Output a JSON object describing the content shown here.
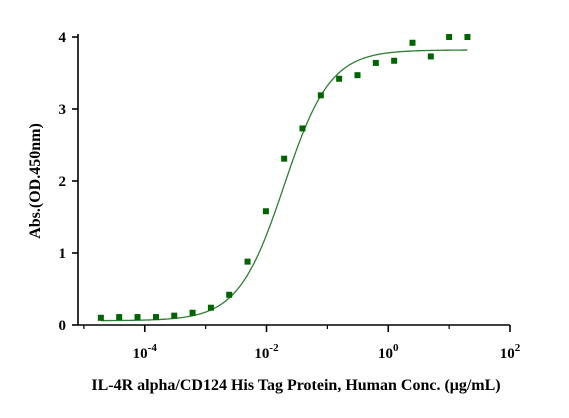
{
  "chart_data": {
    "type": "scatter",
    "title": "",
    "xlabel": "IL-4R alpha/CD124 His Tag Protein, Human Conc. (μg/mL)",
    "ylabel": "Abs.(OD.450nm)",
    "x_scale": "log10",
    "xlim": [
      8e-06,
      100
    ],
    "ylim": [
      0,
      4.2
    ],
    "x_ticks": [
      {
        "value": 0.0001,
        "base": "10",
        "exp": "-4"
      },
      {
        "value": 0.01,
        "base": "10",
        "exp": "-2"
      },
      {
        "value": 1,
        "base": "10",
        "exp": "0"
      },
      {
        "value": 100,
        "base": "10",
        "exp": "2"
      }
    ],
    "y_ticks": [
      "0",
      "1",
      "2",
      "3",
      "4"
    ],
    "grid": false,
    "legend": "none",
    "colors": {
      "points": "#006400",
      "curve": "#2e7d32",
      "axis": "#000000"
    },
    "series": [
      {
        "points": [
          {
            "x": 1.9e-05,
            "y": 0.1
          },
          {
            "x": 3.8e-05,
            "y": 0.11
          },
          {
            "x": 7.6e-05,
            "y": 0.11
          },
          {
            "x": 0.000153,
            "y": 0.11
          },
          {
            "x": 0.000305,
            "y": 0.13
          },
          {
            "x": 0.00061,
            "y": 0.17
          },
          {
            "x": 0.00122,
            "y": 0.24
          },
          {
            "x": 0.00244,
            "y": 0.42
          },
          {
            "x": 0.00488,
            "y": 0.88
          },
          {
            "x": 0.00977,
            "y": 1.58
          },
          {
            "x": 0.0195,
            "y": 2.31
          },
          {
            "x": 0.039,
            "y": 2.73
          },
          {
            "x": 0.078,
            "y": 3.19
          },
          {
            "x": 0.156,
            "y": 3.42
          },
          {
            "x": 0.3125,
            "y": 3.47
          },
          {
            "x": 0.625,
            "y": 3.64
          },
          {
            "x": 1.25,
            "y": 3.67
          },
          {
            "x": 2.5,
            "y": 3.92
          },
          {
            "x": 5,
            "y": 3.73
          },
          {
            "x": 10,
            "y": 4.0
          },
          {
            "x": 20,
            "y": 4.0
          }
        ]
      }
    ],
    "fit": {
      "model": "4PL",
      "bottom": 0.06,
      "top": 3.82,
      "ec50": 0.0195,
      "hill": 1.15
    }
  }
}
